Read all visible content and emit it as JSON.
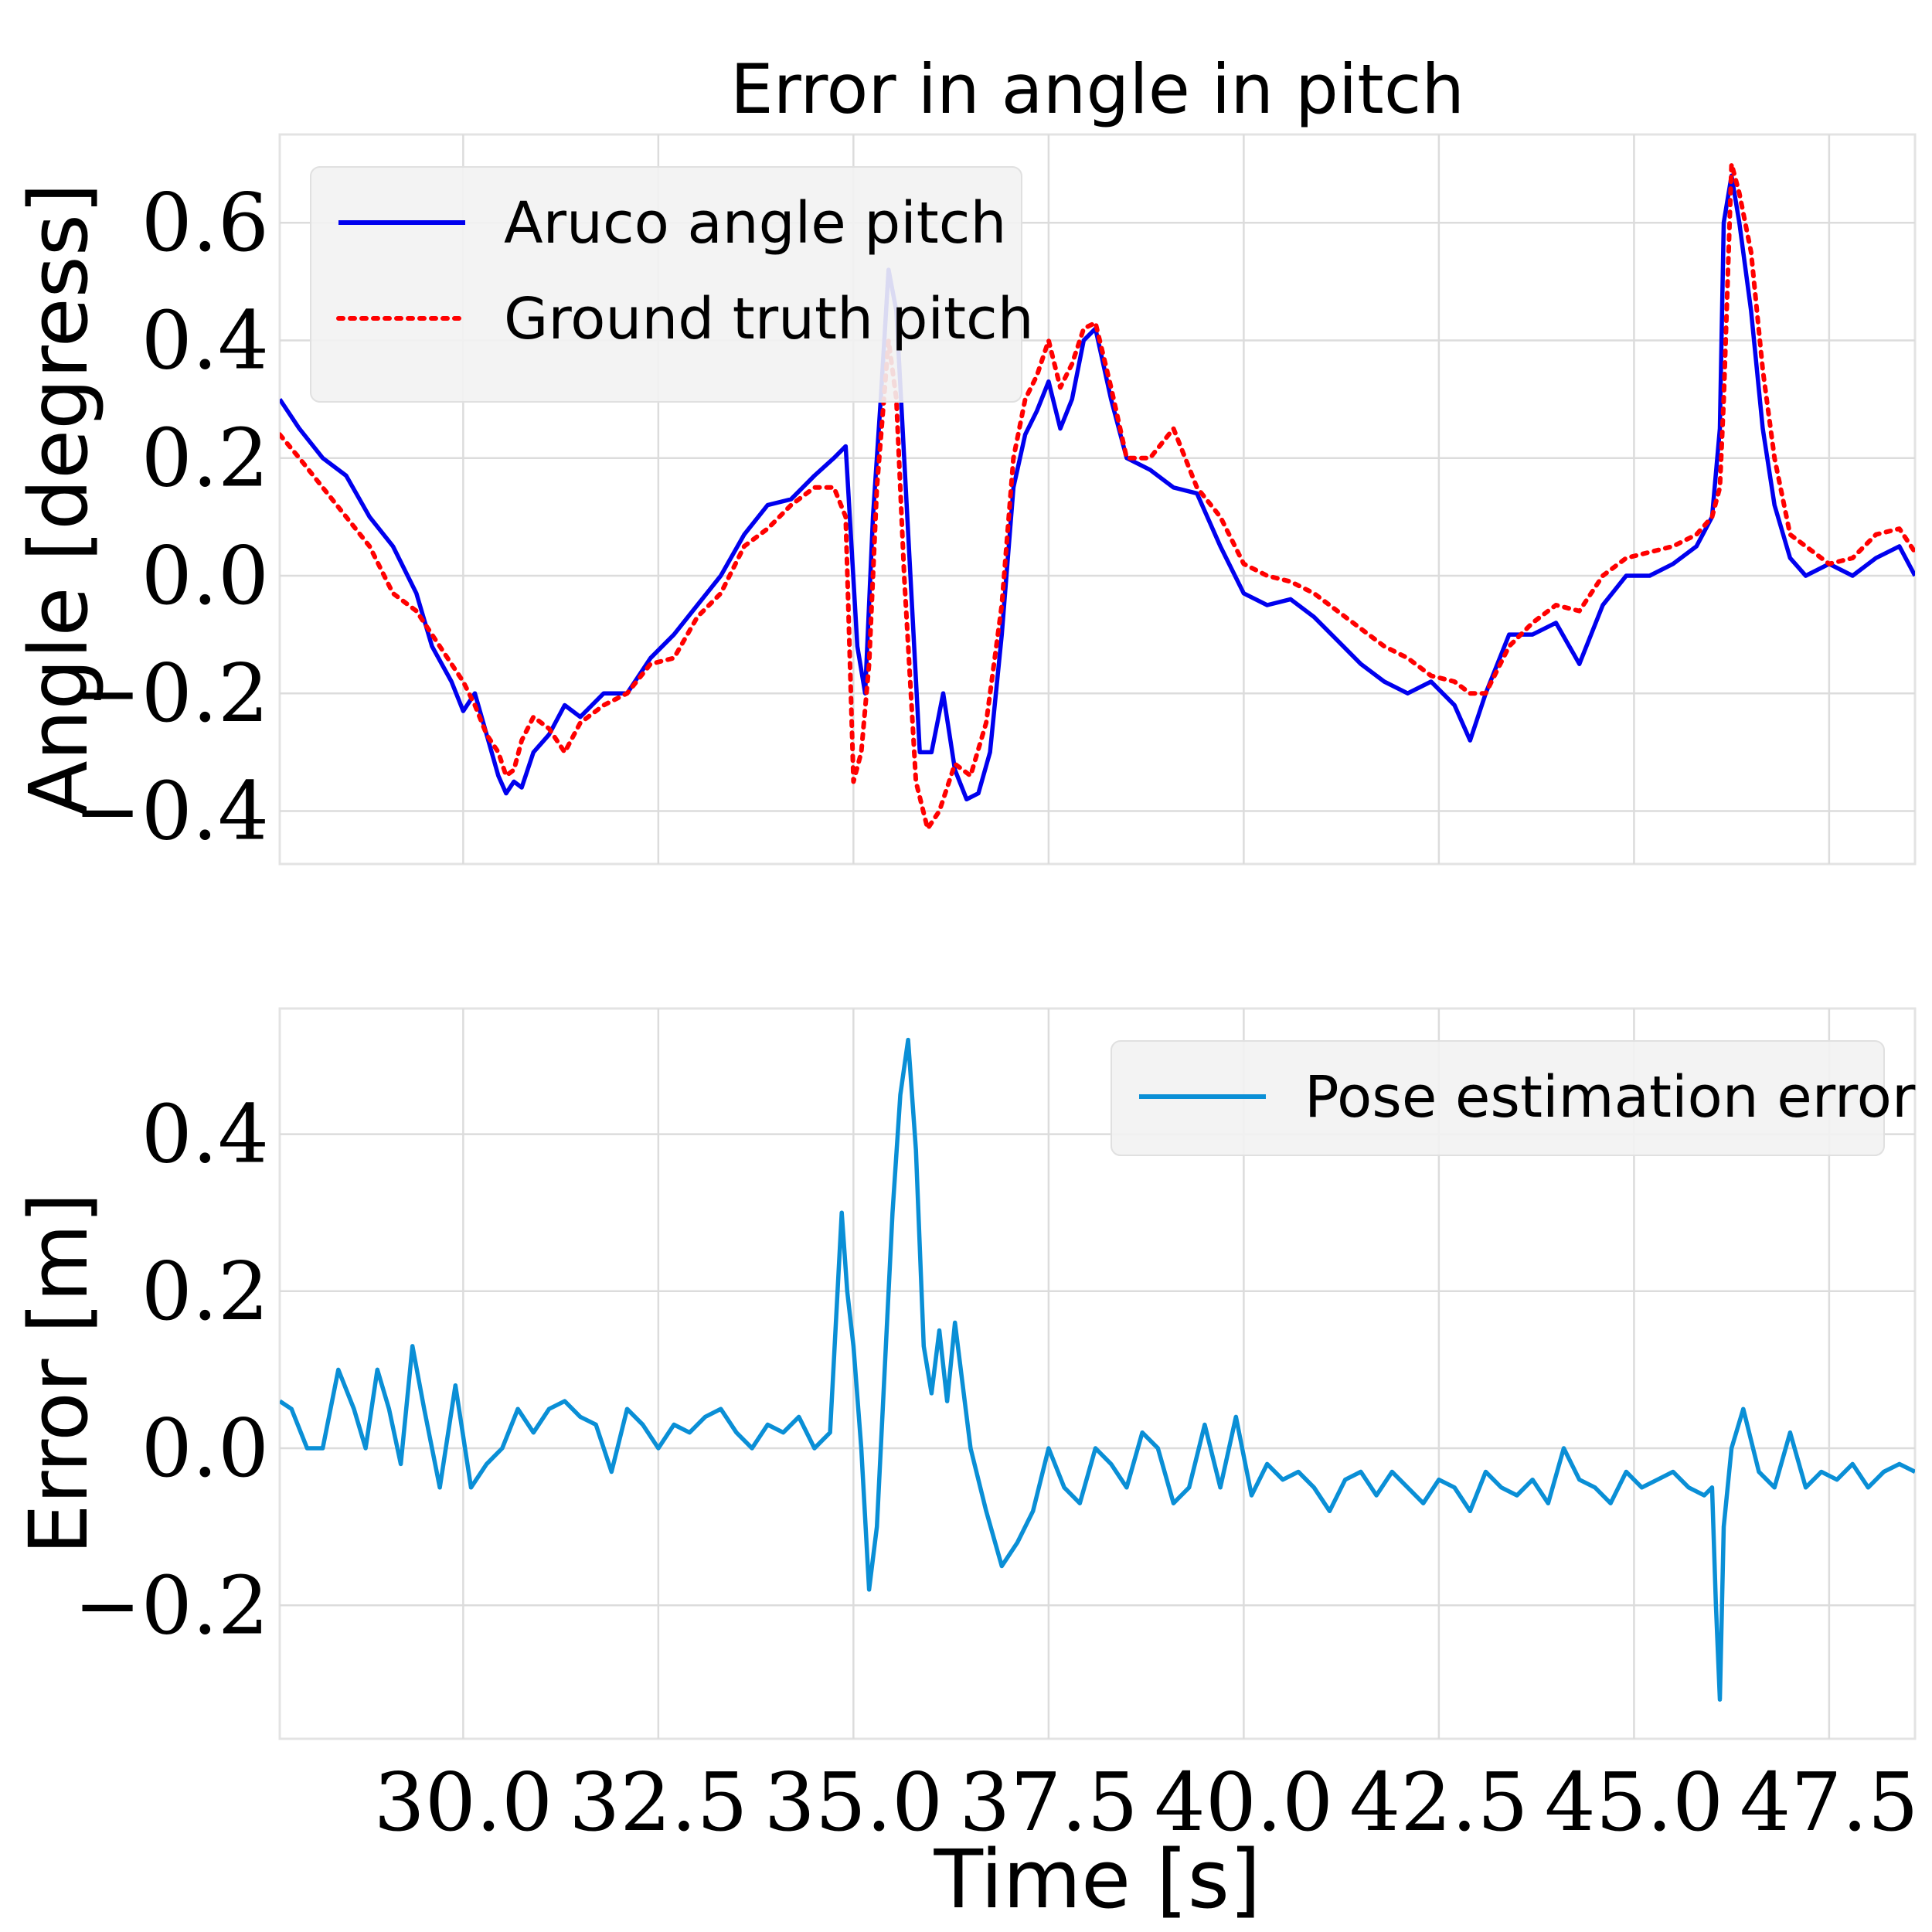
{
  "chart_data": [
    {
      "type": "line",
      "title": "Error in angle in pitch",
      "ylabel": "Angle [degress]",
      "xlabel": "",
      "xlim": [
        27.65,
        48.6
      ],
      "ylim": [
        -0.49,
        0.75
      ],
      "y_ticks": [
        -0.4,
        -0.2,
        0.0,
        0.2,
        0.4,
        0.6
      ],
      "y_tick_labels": [
        "−0.4",
        "−0.2",
        "0.0",
        "0.2",
        "0.4",
        "0.6"
      ],
      "x_ticks": [
        30.0,
        32.5,
        35.0,
        37.5,
        40.0,
        42.5,
        45.0,
        47.5
      ],
      "grid": true,
      "legend_position": "top-left",
      "series": [
        {
          "name": "Aruco angle pitch",
          "color": "#0000ee",
          "style": "solid",
          "x": [
            27.65,
            27.9,
            28.2,
            28.5,
            28.8,
            29.1,
            29.4,
            29.6,
            29.85,
            30.0,
            30.15,
            30.3,
            30.45,
            30.55,
            30.65,
            30.75,
            30.9,
            31.1,
            31.3,
            31.5,
            31.8,
            32.1,
            32.4,
            32.7,
            33.0,
            33.3,
            33.6,
            33.9,
            34.2,
            34.5,
            34.75,
            34.9,
            35.05,
            35.15,
            35.25,
            35.35,
            35.45,
            35.55,
            35.65,
            35.75,
            35.85,
            36.0,
            36.15,
            36.3,
            36.45,
            36.6,
            36.75,
            36.9,
            37.05,
            37.2,
            37.35,
            37.5,
            37.65,
            37.8,
            37.95,
            38.1,
            38.3,
            38.5,
            38.8,
            39.1,
            39.4,
            39.7,
            40.0,
            40.3,
            40.6,
            40.9,
            41.2,
            41.5,
            41.8,
            42.1,
            42.4,
            42.7,
            42.9,
            43.1,
            43.4,
            43.7,
            44.0,
            44.3,
            44.6,
            44.9,
            45.2,
            45.5,
            45.8,
            46.0,
            46.1,
            46.15,
            46.25,
            46.35,
            46.5,
            46.65,
            46.8,
            47.0,
            47.2,
            47.5,
            47.8,
            48.1,
            48.4,
            48.6
          ],
          "y": [
            0.3,
            0.25,
            0.2,
            0.17,
            0.1,
            0.05,
            -0.03,
            -0.12,
            -0.18,
            -0.23,
            -0.2,
            -0.27,
            -0.34,
            -0.37,
            -0.35,
            -0.36,
            -0.3,
            -0.27,
            -0.22,
            -0.24,
            -0.2,
            -0.2,
            -0.14,
            -0.1,
            -0.05,
            0.0,
            0.07,
            0.12,
            0.13,
            0.17,
            0.2,
            0.22,
            -0.12,
            -0.2,
            0.1,
            0.3,
            0.52,
            0.45,
            0.2,
            -0.05,
            -0.3,
            -0.3,
            -0.2,
            -0.33,
            -0.38,
            -0.37,
            -0.3,
            -0.1,
            0.15,
            0.24,
            0.28,
            0.33,
            0.25,
            0.3,
            0.4,
            0.42,
            0.3,
            0.2,
            0.18,
            0.15,
            0.14,
            0.05,
            -0.03,
            -0.05,
            -0.04,
            -0.07,
            -0.11,
            -0.15,
            -0.18,
            -0.2,
            -0.18,
            -0.22,
            -0.28,
            -0.2,
            -0.1,
            -0.1,
            -0.08,
            -0.15,
            -0.05,
            0.0,
            0.0,
            0.02,
            0.05,
            0.1,
            0.25,
            0.6,
            0.68,
            0.6,
            0.45,
            0.25,
            0.12,
            0.03,
            0.0,
            0.02,
            0.0,
            0.03,
            0.05,
            0.0
          ]
        },
        {
          "name": "Ground truth pitch",
          "color": "#ff0000",
          "style": "dotted",
          "x": [
            27.65,
            27.9,
            28.2,
            28.5,
            28.8,
            29.1,
            29.4,
            29.6,
            29.85,
            30.0,
            30.15,
            30.3,
            30.45,
            30.55,
            30.65,
            30.75,
            30.9,
            31.1,
            31.3,
            31.5,
            31.8,
            32.1,
            32.4,
            32.7,
            33.0,
            33.3,
            33.6,
            33.9,
            34.2,
            34.5,
            34.75,
            34.9,
            35.0,
            35.1,
            35.2,
            35.3,
            35.45,
            35.55,
            35.65,
            35.8,
            35.95,
            36.1,
            36.3,
            36.5,
            36.7,
            36.9,
            37.05,
            37.2,
            37.35,
            37.5,
            37.65,
            37.8,
            37.95,
            38.1,
            38.3,
            38.5,
            38.8,
            39.1,
            39.4,
            39.7,
            40.0,
            40.3,
            40.6,
            40.9,
            41.2,
            41.5,
            41.8,
            42.1,
            42.4,
            42.7,
            42.9,
            43.1,
            43.4,
            43.7,
            44.0,
            44.3,
            44.6,
            44.9,
            45.2,
            45.5,
            45.8,
            46.0,
            46.1,
            46.15,
            46.25,
            46.35,
            46.5,
            46.65,
            46.8,
            47.0,
            47.2,
            47.5,
            47.8,
            48.1,
            48.4,
            48.6
          ],
          "y": [
            0.24,
            0.2,
            0.15,
            0.1,
            0.05,
            -0.03,
            -0.06,
            -0.1,
            -0.15,
            -0.18,
            -0.22,
            -0.27,
            -0.3,
            -0.34,
            -0.33,
            -0.28,
            -0.24,
            -0.26,
            -0.3,
            -0.25,
            -0.22,
            -0.2,
            -0.15,
            -0.14,
            -0.07,
            -0.03,
            0.05,
            0.08,
            0.12,
            0.15,
            0.15,
            0.1,
            -0.35,
            -0.3,
            -0.15,
            0.15,
            0.4,
            0.3,
            0.0,
            -0.35,
            -0.43,
            -0.4,
            -0.32,
            -0.34,
            -0.25,
            -0.05,
            0.2,
            0.3,
            0.34,
            0.4,
            0.32,
            0.36,
            0.42,
            0.43,
            0.32,
            0.2,
            0.2,
            0.25,
            0.15,
            0.1,
            0.02,
            0.0,
            -0.01,
            -0.03,
            -0.06,
            -0.09,
            -0.12,
            -0.14,
            -0.17,
            -0.18,
            -0.2,
            -0.2,
            -0.12,
            -0.08,
            -0.05,
            -0.06,
            0.0,
            0.03,
            0.04,
            0.05,
            0.07,
            0.1,
            0.15,
            0.3,
            0.7,
            0.65,
            0.55,
            0.35,
            0.2,
            0.07,
            0.05,
            0.02,
            0.03,
            0.07,
            0.08,
            0.04
          ]
        }
      ]
    },
    {
      "type": "line",
      "title": "",
      "ylabel": "Error [m]",
      "xlabel": "Time [s]",
      "xlim": [
        27.65,
        48.6
      ],
      "ylim": [
        -0.37,
        0.56
      ],
      "y_ticks": [
        -0.2,
        0.0,
        0.2,
        0.4
      ],
      "y_tick_labels": [
        "−0.2",
        "0.0",
        "0.2",
        "0.4"
      ],
      "x_ticks": [
        30.0,
        32.5,
        35.0,
        37.5,
        40.0,
        42.5,
        45.0,
        47.5
      ],
      "x_tick_labels": [
        "30.0",
        "32.5",
        "35.0",
        "37.5",
        "40.0",
        "42.5",
        "45.0",
        "47.5"
      ],
      "grid": true,
      "legend_position": "top-right",
      "series": [
        {
          "name": "Pose estimation error",
          "color": "#0a8fd6",
          "style": "solid",
          "x": [
            27.65,
            27.8,
            28.0,
            28.2,
            28.4,
            28.6,
            28.75,
            28.9,
            29.05,
            29.2,
            29.35,
            29.5,
            29.7,
            29.9,
            30.1,
            30.3,
            30.5,
            30.7,
            30.9,
            31.1,
            31.3,
            31.5,
            31.7,
            31.9,
            32.1,
            32.3,
            32.5,
            32.7,
            32.9,
            33.1,
            33.3,
            33.5,
            33.7,
            33.9,
            34.1,
            34.3,
            34.5,
            34.7,
            34.85,
            34.92,
            35.0,
            35.1,
            35.2,
            35.3,
            35.4,
            35.5,
            35.6,
            35.7,
            35.8,
            35.9,
            36.0,
            36.1,
            36.2,
            36.3,
            36.5,
            36.7,
            36.9,
            37.1,
            37.3,
            37.5,
            37.7,
            37.9,
            38.1,
            38.3,
            38.5,
            38.7,
            38.9,
            39.1,
            39.3,
            39.5,
            39.7,
            39.9,
            40.1,
            40.3,
            40.5,
            40.7,
            40.9,
            41.1,
            41.3,
            41.5,
            41.7,
            41.9,
            42.1,
            42.3,
            42.5,
            42.7,
            42.9,
            43.1,
            43.3,
            43.5,
            43.7,
            43.9,
            44.1,
            44.3,
            44.5,
            44.7,
            44.9,
            45.1,
            45.3,
            45.5,
            45.7,
            45.9,
            46.0,
            46.05,
            46.1,
            46.15,
            46.25,
            46.4,
            46.6,
            46.8,
            47.0,
            47.2,
            47.4,
            47.6,
            47.8,
            48.0,
            48.2,
            48.4,
            48.6
          ],
          "y": [
            0.06,
            0.05,
            0.0,
            0.0,
            0.1,
            0.05,
            0.0,
            0.1,
            0.05,
            -0.02,
            0.13,
            0.05,
            -0.05,
            0.08,
            -0.05,
            -0.02,
            0.0,
            0.05,
            0.02,
            0.05,
            0.06,
            0.04,
            0.03,
            -0.03,
            0.05,
            0.03,
            0.0,
            0.03,
            0.02,
            0.04,
            0.05,
            0.02,
            0.0,
            0.03,
            0.02,
            0.04,
            0.0,
            0.02,
            0.3,
            0.2,
            0.13,
            0.0,
            -0.18,
            -0.1,
            0.1,
            0.3,
            0.45,
            0.52,
            0.38,
            0.13,
            0.07,
            0.15,
            0.06,
            0.16,
            0.0,
            -0.08,
            -0.15,
            -0.12,
            -0.08,
            0.0,
            -0.05,
            -0.07,
            0.0,
            -0.02,
            -0.05,
            0.02,
            0.0,
            -0.07,
            -0.05,
            0.03,
            -0.05,
            0.04,
            -0.06,
            -0.02,
            -0.04,
            -0.03,
            -0.05,
            -0.08,
            -0.04,
            -0.03,
            -0.06,
            -0.03,
            -0.05,
            -0.07,
            -0.04,
            -0.05,
            -0.08,
            -0.03,
            -0.05,
            -0.06,
            -0.04,
            -0.07,
            0.0,
            -0.04,
            -0.05,
            -0.07,
            -0.03,
            -0.05,
            -0.04,
            -0.03,
            -0.05,
            -0.06,
            -0.05,
            -0.2,
            -0.32,
            -0.1,
            0.0,
            0.05,
            -0.03,
            -0.05,
            0.02,
            -0.05,
            -0.03,
            -0.04,
            -0.02,
            -0.05,
            -0.03,
            -0.02,
            -0.03
          ]
        }
      ]
    }
  ]
}
